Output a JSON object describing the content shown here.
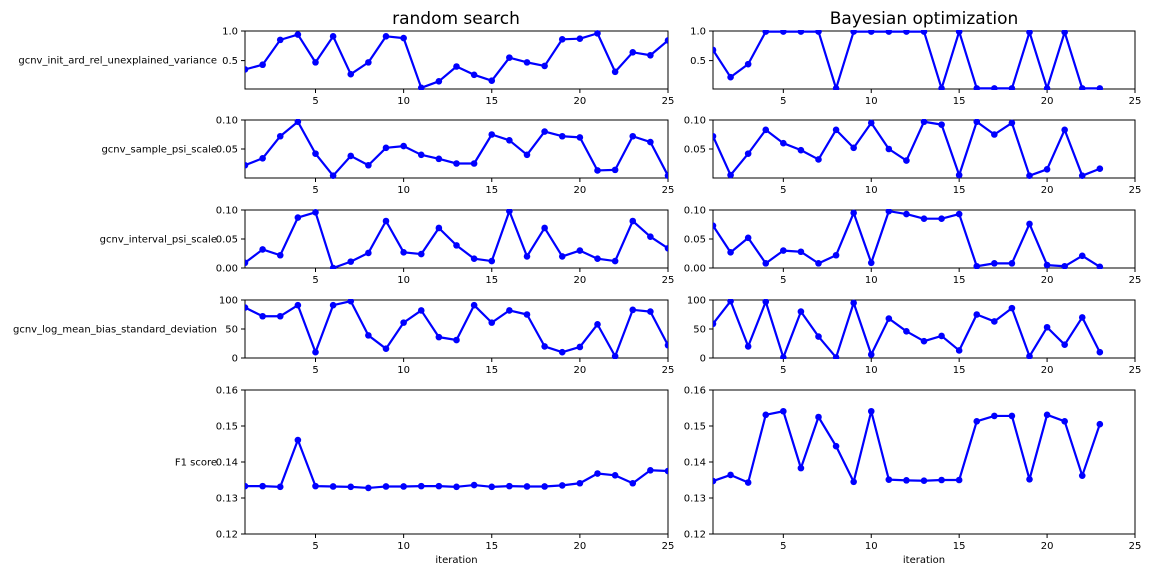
{
  "figure": {
    "column_titles": [
      "random search",
      "Bayesian optimization"
    ],
    "xlabel": "iteration",
    "colors": {
      "series": "#0000ff",
      "axes": "#000000",
      "background": "#ffffff"
    }
  },
  "chart_data": [
    {
      "type": "line",
      "panel": "random search / gcnv_init_ard_rel_unexplained_variance",
      "title": "random search",
      "xlabel": "",
      "ylabel": "gcnv_init_ard_rel_unexplained_variance",
      "xlim": [
        1,
        25
      ],
      "ylim": [
        0.02,
        1.0
      ],
      "xticks": [
        5,
        10,
        15,
        20,
        25
      ],
      "yticks": [
        0.5,
        1.0
      ],
      "ytick_labels": [
        "0.5",
        "1.0"
      ],
      "x": [
        1,
        2,
        3,
        4,
        5,
        6,
        7,
        8,
        9,
        10,
        11,
        12,
        13,
        14,
        15,
        16,
        17,
        18,
        19,
        20,
        21,
        22,
        23,
        24,
        25
      ],
      "series": [
        {
          "values": [
            0.35,
            0.43,
            0.85,
            0.94,
            0.47,
            0.91,
            0.27,
            0.47,
            0.91,
            0.88,
            0.04,
            0.15,
            0.4,
            0.26,
            0.16,
            0.55,
            0.47,
            0.41,
            0.86,
            0.87,
            0.96,
            0.31,
            0.64,
            0.59,
            0.84
          ]
        }
      ]
    },
    {
      "type": "line",
      "panel": "Bayesian optimization / gcnv_init_ard_rel_unexplained_variance",
      "title": "Bayesian optimization",
      "xlabel": "",
      "ylabel": "",
      "xlim": [
        1,
        25
      ],
      "ylim": [
        0.02,
        1.0
      ],
      "xticks": [
        5,
        10,
        15,
        20,
        25
      ],
      "yticks": [
        0.5,
        1.0
      ],
      "ytick_labels": [
        "0.5",
        "1.0"
      ],
      "x": [
        1,
        2,
        3,
        4,
        5,
        6,
        7,
        8,
        9,
        10,
        11,
        12,
        13,
        14,
        15,
        16,
        17,
        18,
        19,
        20,
        21,
        22,
        23
      ],
      "series": [
        {
          "values": [
            0.68,
            0.22,
            0.44,
            0.99,
            0.99,
            0.99,
            0.99,
            0.03,
            0.99,
            0.99,
            0.99,
            0.99,
            0.99,
            0.03,
            0.99,
            0.03,
            0.03,
            0.03,
            0.98,
            0.03,
            0.98,
            0.03,
            0.03
          ]
        }
      ]
    },
    {
      "type": "line",
      "panel": "random search / gcnv_sample_psi_scale",
      "title": "",
      "xlabel": "",
      "ylabel": "gcnv_sample_psi_scale",
      "xlim": [
        1,
        25
      ],
      "ylim": [
        0.0,
        0.1
      ],
      "xticks": [
        5,
        10,
        15,
        20,
        25
      ],
      "yticks": [
        0.05,
        0.1
      ],
      "ytick_labels": [
        "0.05",
        "0.10"
      ],
      "x": [
        1,
        2,
        3,
        4,
        5,
        6,
        7,
        8,
        9,
        10,
        11,
        12,
        13,
        14,
        15,
        16,
        17,
        18,
        19,
        20,
        21,
        22,
        23,
        24,
        25
      ],
      "series": [
        {
          "values": [
            0.022,
            0.034,
            0.072,
            0.097,
            0.042,
            0.004,
            0.038,
            0.022,
            0.052,
            0.055,
            0.04,
            0.033,
            0.025,
            0.025,
            0.075,
            0.065,
            0.04,
            0.08,
            0.072,
            0.07,
            0.013,
            0.014,
            0.072,
            0.062,
            0.004
          ]
        }
      ]
    },
    {
      "type": "line",
      "panel": "Bayesian optimization / gcnv_sample_psi_scale",
      "title": "",
      "xlabel": "",
      "ylabel": "",
      "xlim": [
        1,
        25
      ],
      "ylim": [
        0.0,
        0.1
      ],
      "xticks": [
        5,
        10,
        15,
        20,
        25
      ],
      "yticks": [
        0.05,
        0.1
      ],
      "ytick_labels": [
        "0.05",
        "0.10"
      ],
      "x": [
        1,
        2,
        3,
        4,
        5,
        6,
        7,
        8,
        9,
        10,
        11,
        12,
        13,
        14,
        15,
        16,
        17,
        18,
        19,
        20,
        21,
        22,
        23
      ],
      "series": [
        {
          "values": [
            0.072,
            0.005,
            0.042,
            0.083,
            0.06,
            0.048,
            0.032,
            0.083,
            0.052,
            0.095,
            0.05,
            0.03,
            0.097,
            0.092,
            0.005,
            0.097,
            0.075,
            0.095,
            0.004,
            0.015,
            0.083,
            0.004,
            0.016
          ]
        }
      ]
    },
    {
      "type": "line",
      "panel": "random search / gcnv_interval_psi_scale",
      "title": "",
      "xlabel": "",
      "ylabel": "gcnv_interval_psi_scale",
      "xlim": [
        1,
        25
      ],
      "ylim": [
        0.0,
        0.1
      ],
      "xticks": [
        5,
        10,
        15,
        20,
        25
      ],
      "yticks": [
        0.0,
        0.05,
        0.1
      ],
      "ytick_labels": [
        "0.00",
        "0.05",
        "0.10"
      ],
      "x": [
        1,
        2,
        3,
        4,
        5,
        6,
        7,
        8,
        9,
        10,
        11,
        12,
        13,
        14,
        15,
        16,
        17,
        18,
        19,
        20,
        21,
        22,
        23,
        24,
        25
      ],
      "series": [
        {
          "values": [
            0.009,
            0.032,
            0.022,
            0.087,
            0.096,
            0.0,
            0.011,
            0.026,
            0.081,
            0.027,
            0.024,
            0.069,
            0.039,
            0.016,
            0.012,
            0.098,
            0.02,
            0.069,
            0.02,
            0.03,
            0.016,
            0.012,
            0.081,
            0.054,
            0.034
          ]
        }
      ]
    },
    {
      "type": "line",
      "panel": "Bayesian optimization / gcnv_interval_psi_scale",
      "title": "",
      "xlabel": "",
      "ylabel": "",
      "xlim": [
        1,
        25
      ],
      "ylim": [
        0.0,
        0.1
      ],
      "xticks": [
        5,
        10,
        15,
        20,
        25
      ],
      "yticks": [
        0.0,
        0.05,
        0.1
      ],
      "ytick_labels": [
        "0.00",
        "0.05",
        "0.10"
      ],
      "x": [
        1,
        2,
        3,
        4,
        5,
        6,
        7,
        8,
        9,
        10,
        11,
        12,
        13,
        14,
        15,
        16,
        17,
        18,
        19,
        20,
        21,
        22,
        23
      ],
      "series": [
        {
          "values": [
            0.073,
            0.027,
            0.052,
            0.008,
            0.03,
            0.028,
            0.008,
            0.022,
            0.095,
            0.009,
            0.098,
            0.093,
            0.085,
            0.085,
            0.093,
            0.003,
            0.008,
            0.008,
            0.076,
            0.005,
            0.003,
            0.021,
            0.002
          ]
        }
      ]
    },
    {
      "type": "line",
      "panel": "random search / gcnv_log_mean_bias_standard_deviation",
      "title": "",
      "xlabel": "",
      "ylabel": "gcnv_log_mean_bias_standard_deviation",
      "xlim": [
        1,
        25
      ],
      "ylim": [
        0,
        100
      ],
      "xticks": [
        5,
        10,
        15,
        20,
        25
      ],
      "yticks": [
        0,
        50,
        100
      ],
      "ytick_labels": [
        "0",
        "50",
        "100"
      ],
      "x": [
        1,
        2,
        3,
        4,
        5,
        6,
        7,
        8,
        9,
        10,
        11,
        12,
        13,
        14,
        15,
        16,
        17,
        18,
        19,
        20,
        21,
        22,
        23,
        24,
        25
      ],
      "series": [
        {
          "values": [
            87,
            72,
            72,
            91,
            10,
            91,
            98,
            39,
            16,
            61,
            82,
            36,
            31,
            91,
            61,
            82,
            75,
            20,
            10,
            19,
            58,
            3,
            83,
            80,
            22
          ]
        }
      ]
    },
    {
      "type": "line",
      "panel": "Bayesian optimization / gcnv_log_mean_bias_standard_deviation",
      "title": "",
      "xlabel": "",
      "ylabel": "",
      "xlim": [
        1,
        25
      ],
      "ylim": [
        0,
        100
      ],
      "xticks": [
        5,
        10,
        15,
        20,
        25
      ],
      "yticks": [
        0,
        50,
        100
      ],
      "ytick_labels": [
        "0",
        "50",
        "100"
      ],
      "x": [
        1,
        2,
        3,
        4,
        5,
        6,
        7,
        8,
        9,
        10,
        11,
        12,
        13,
        14,
        15,
        16,
        17,
        18,
        19,
        20,
        21,
        22,
        23
      ],
      "series": [
        {
          "values": [
            59,
            98,
            20,
            97,
            1,
            80,
            37,
            1,
            95,
            6,
            68,
            46,
            29,
            38,
            13,
            75,
            63,
            86,
            3,
            53,
            23,
            70,
            10
          ]
        }
      ]
    },
    {
      "type": "line",
      "panel": "random search / F1 score",
      "title": "",
      "xlabel": "iteration",
      "ylabel": "F1 score",
      "xlim": [
        1,
        25
      ],
      "ylim": [
        0.12,
        0.16
      ],
      "xticks": [
        5,
        10,
        15,
        20,
        25
      ],
      "yticks": [
        0.12,
        0.13,
        0.14,
        0.15,
        0.16
      ],
      "ytick_labels": [
        "0.12",
        "0.13",
        "0.14",
        "0.15",
        "0.16"
      ],
      "x": [
        1,
        2,
        3,
        4,
        5,
        6,
        7,
        8,
        9,
        10,
        11,
        12,
        13,
        14,
        15,
        16,
        17,
        18,
        19,
        20,
        21,
        22,
        23,
        24,
        25
      ],
      "series": [
        {
          "values": [
            0.1333,
            0.1333,
            0.1331,
            0.1461,
            0.1333,
            0.1332,
            0.1331,
            0.1328,
            0.1332,
            0.1332,
            0.1333,
            0.1333,
            0.1331,
            0.1336,
            0.1331,
            0.1333,
            0.1332,
            0.1332,
            0.1335,
            0.1341,
            0.1368,
            0.1363,
            0.1341,
            0.1377,
            0.1375
          ]
        }
      ]
    },
    {
      "type": "line",
      "panel": "Bayesian optimization / F1 score",
      "title": "",
      "xlabel": "iteration",
      "ylabel": "",
      "xlim": [
        1,
        25
      ],
      "ylim": [
        0.12,
        0.16
      ],
      "xticks": [
        5,
        10,
        15,
        20,
        25
      ],
      "yticks": [
        0.12,
        0.13,
        0.14,
        0.15,
        0.16
      ],
      "ytick_labels": [
        "0.12",
        "0.13",
        "0.14",
        "0.15",
        "0.16"
      ],
      "x": [
        1,
        2,
        3,
        4,
        5,
        6,
        7,
        8,
        9,
        10,
        11,
        12,
        13,
        14,
        15,
        16,
        17,
        18,
        19,
        20,
        21,
        22,
        23
      ],
      "series": [
        {
          "values": [
            0.1347,
            0.1364,
            0.1343,
            0.1531,
            0.1541,
            0.1383,
            0.1525,
            0.1444,
            0.1345,
            0.1541,
            0.1351,
            0.1349,
            0.1348,
            0.135,
            0.135,
            0.1513,
            0.1528,
            0.1528,
            0.1352,
            0.1531,
            0.1513,
            0.1362,
            0.1505
          ]
        }
      ]
    }
  ]
}
